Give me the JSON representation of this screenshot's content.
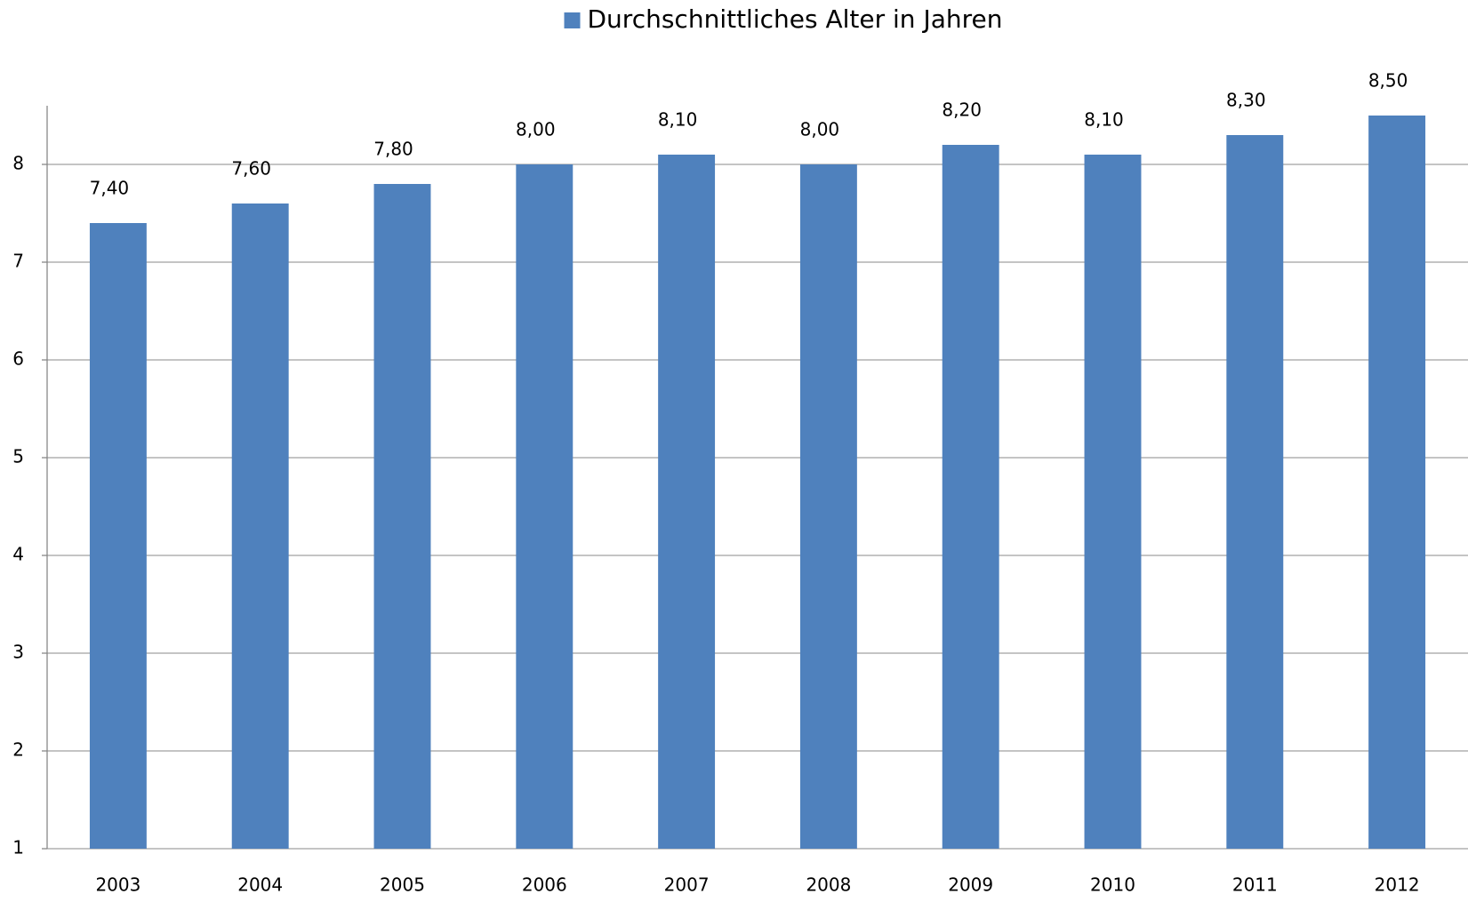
{
  "chart_data": {
    "type": "bar",
    "categories": [
      "2003",
      "2004",
      "2005",
      "2006",
      "2007",
      "2008",
      "2009",
      "2010",
      "2011",
      "2012"
    ],
    "series": [
      {
        "name": "Durchschnittliches Alter in Jahren",
        "color": "#4f81bd",
        "values": [
          7.4,
          7.6,
          7.8,
          8.0,
          8.1,
          8.0,
          8.2,
          8.1,
          8.3,
          8.5
        ],
        "value_labels": [
          "7,40",
          "7,60",
          "7,80",
          "8,00",
          "8,10",
          "8,00",
          "8,20",
          "8,10",
          "8,30",
          "8,50"
        ]
      }
    ],
    "ylim": [
      1,
      8.6
    ],
    "yticks": [
      1,
      2,
      3,
      4,
      5,
      6,
      7,
      8
    ],
    "grid": true,
    "legend": "top"
  }
}
